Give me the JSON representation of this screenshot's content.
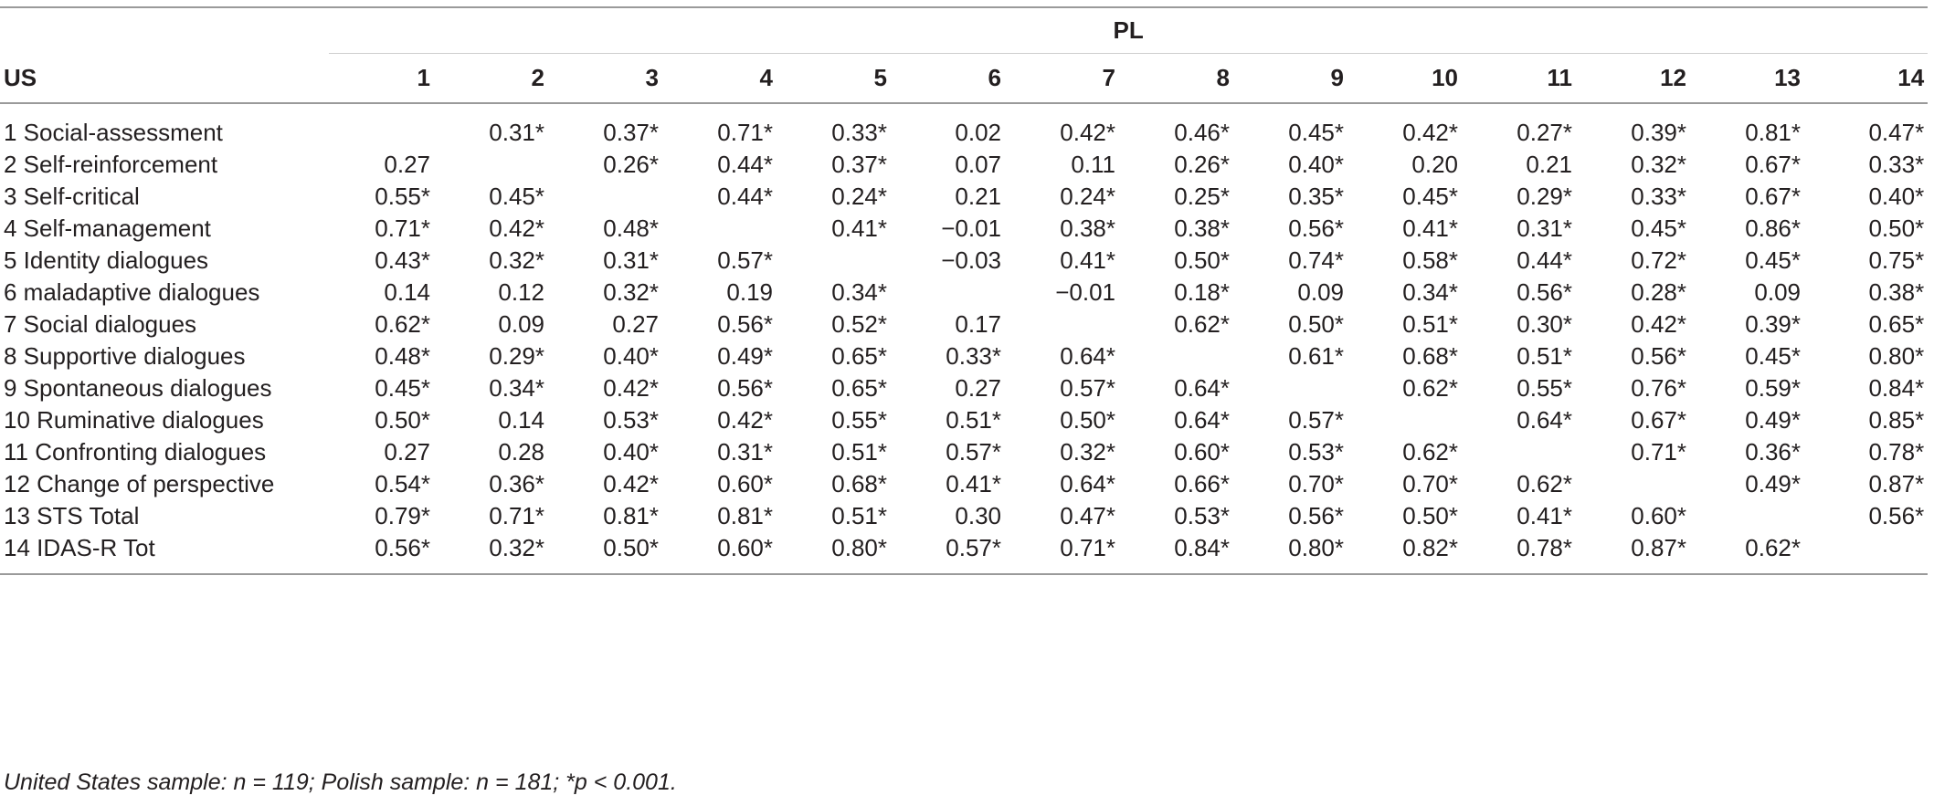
{
  "table": {
    "group_header": "PL",
    "row_header": "US",
    "columns": [
      "1",
      "2",
      "3",
      "4",
      "5",
      "6",
      "7",
      "8",
      "9",
      "10",
      "11",
      "12",
      "13",
      "14"
    ],
    "rows": [
      {
        "label": "1 Social-assessment",
        "values": [
          "",
          "0.31*",
          "0.37*",
          "0.71*",
          "0.33*",
          "0.02",
          "0.42*",
          "0.46*",
          "0.45*",
          "0.42*",
          "0.27*",
          "0.39*",
          "0.81*",
          "0.47*"
        ]
      },
      {
        "label": "2 Self-reinforcement",
        "values": [
          "0.27",
          "",
          "0.26*",
          "0.44*",
          "0.37*",
          "0.07",
          "0.11",
          "0.26*",
          "0.40*",
          "0.20",
          "0.21",
          "0.32*",
          "0.67*",
          "0.33*"
        ]
      },
      {
        "label": "3 Self-critical",
        "values": [
          "0.55*",
          "0.45*",
          "",
          "0.44*",
          "0.24*",
          "0.21",
          "0.24*",
          "0.25*",
          "0.35*",
          "0.45*",
          "0.29*",
          "0.33*",
          "0.67*",
          "0.40*"
        ]
      },
      {
        "label": "4 Self-management",
        "values": [
          "0.71*",
          "0.42*",
          "0.48*",
          "",
          "0.41*",
          "−0.01",
          "0.38*",
          "0.38*",
          "0.56*",
          "0.41*",
          "0.31*",
          "0.45*",
          "0.86*",
          "0.50*"
        ]
      },
      {
        "label": "5 Identity dialogues",
        "values": [
          "0.43*",
          "0.32*",
          "0.31*",
          "0.57*",
          "",
          "−0.03",
          "0.41*",
          "0.50*",
          "0.74*",
          "0.58*",
          "0.44*",
          "0.72*",
          "0.45*",
          "0.75*"
        ]
      },
      {
        "label": "6 maladaptive dialogues",
        "values": [
          "0.14",
          "0.12",
          "0.32*",
          "0.19",
          "0.34*",
          "",
          "−0.01",
          "0.18*",
          "0.09",
          "0.34*",
          "0.56*",
          "0.28*",
          "0.09",
          "0.38*"
        ]
      },
      {
        "label": "7 Social dialogues",
        "values": [
          "0.62*",
          "0.09",
          "0.27",
          "0.56*",
          "0.52*",
          "0.17",
          "",
          "0.62*",
          "0.50*",
          "0.51*",
          "0.30*",
          "0.42*",
          "0.39*",
          "0.65*"
        ]
      },
      {
        "label": "8 Supportive dialogues",
        "values": [
          "0.48*",
          "0.29*",
          "0.40*",
          "0.49*",
          "0.65*",
          "0.33*",
          "0.64*",
          "",
          "0.61*",
          "0.68*",
          "0.51*",
          "0.56*",
          "0.45*",
          "0.80*"
        ]
      },
      {
        "label": "9 Spontaneous dialogues",
        "values": [
          "0.45*",
          "0.34*",
          "0.42*",
          "0.56*",
          "0.65*",
          "0.27",
          "0.57*",
          "0.64*",
          "",
          "0.62*",
          "0.55*",
          "0.76*",
          "0.59*",
          "0.84*"
        ]
      },
      {
        "label": "10 Ruminative dialogues",
        "values": [
          "0.50*",
          "0.14",
          "0.53*",
          "0.42*",
          "0.55*",
          "0.51*",
          "0.50*",
          "0.64*",
          "0.57*",
          "",
          "0.64*",
          "0.67*",
          "0.49*",
          "0.85*"
        ]
      },
      {
        "label": "11 Confronting dialogues",
        "values": [
          "0.27",
          "0.28",
          "0.40*",
          "0.31*",
          "0.51*",
          "0.57*",
          "0.32*",
          "0.60*",
          "0.53*",
          "0.62*",
          "",
          "0.71*",
          "0.36*",
          "0.78*"
        ]
      },
      {
        "label": "12 Change of perspective",
        "values": [
          "0.54*",
          "0.36*",
          "0.42*",
          "0.60*",
          "0.68*",
          "0.41*",
          "0.64*",
          "0.66*",
          "0.70*",
          "0.70*",
          "0.62*",
          "",
          "0.49*",
          "0.87*"
        ]
      },
      {
        "label": "13 STS Total",
        "values": [
          "0.79*",
          "0.71*",
          "0.81*",
          "0.81*",
          "0.51*",
          "0.30",
          "0.47*",
          "0.53*",
          "0.56*",
          "0.50*",
          "0.41*",
          "0.60*",
          "",
          "0.56*"
        ]
      },
      {
        "label": "14 IDAS-R Tot",
        "values": [
          "0.56*",
          "0.32*",
          "0.50*",
          "0.60*",
          "0.80*",
          "0.57*",
          "0.71*",
          "0.84*",
          "0.80*",
          "0.82*",
          "0.78*",
          "0.87*",
          "0.62*",
          ""
        ]
      }
    ]
  },
  "footnote": "United States sample: n = 119; Polish sample: n = 181; *p < 0.001."
}
